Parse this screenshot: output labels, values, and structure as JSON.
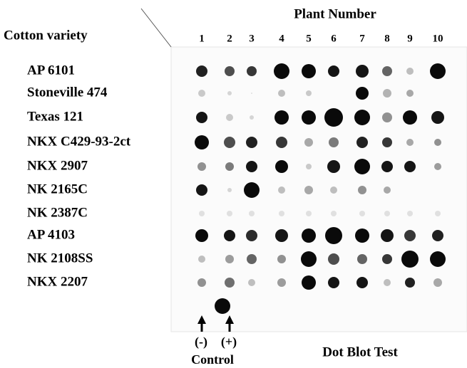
{
  "title": "Plant Number",
  "row_header": "Cotton variety",
  "columns": [
    "1",
    "2",
    "3",
    "4",
    "5",
    "6",
    "7",
    "8",
    "9",
    "10"
  ],
  "rows": [
    "AP 6101",
    "Stoneville 474",
    "Texas 121",
    "NKX C429-93-2ct",
    "NKX 2907",
    "NK 2165C",
    "NK 2387C",
    "AP 4103",
    "NK 2108SS",
    "NKX 2207"
  ],
  "controls": {
    "negative": "(-)",
    "positive": "(+)",
    "label": "Control"
  },
  "caption": "Dot Blot Test"
}
